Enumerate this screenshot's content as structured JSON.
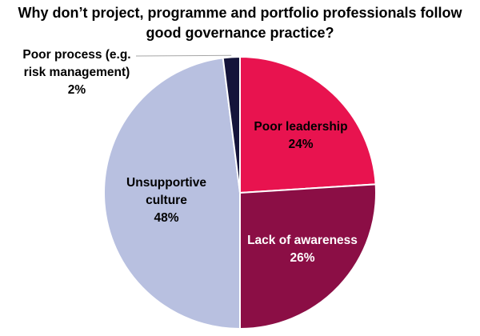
{
  "chart_data": {
    "type": "pie",
    "title": "Why don’t project, programme and portfolio professionals follow good governance practice?",
    "slices": [
      {
        "label": "Poor leadership",
        "value": 24,
        "value_label": "24%",
        "color": "#e8134f",
        "label_color": "#000000"
      },
      {
        "label": "Lack of awareness",
        "value": 26,
        "value_label": "26%",
        "color": "#8b0e45",
        "label_color": "#ffffff"
      },
      {
        "label": "Unsupportive culture",
        "value": 48,
        "value_label": "48%",
        "color": "#b8c0e0",
        "label_color": "#000000"
      },
      {
        "label": "Poor process (e.g. risk management)",
        "value": 2,
        "value_label": "2%",
        "color": "#14143a",
        "label_color": "#000000"
      }
    ]
  }
}
